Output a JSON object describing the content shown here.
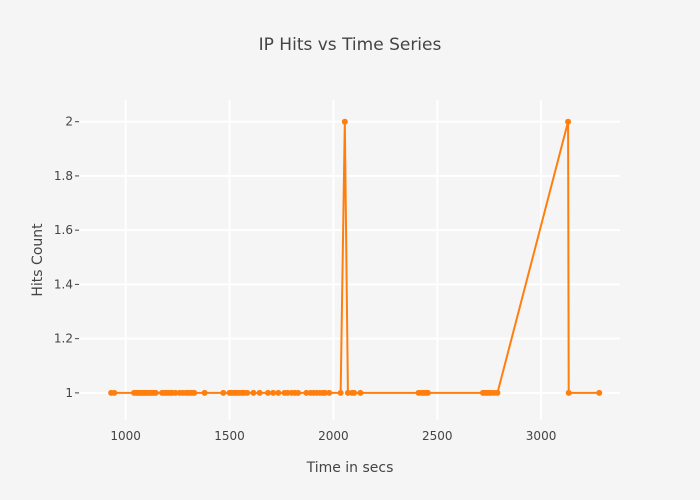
{
  "chart_data": {
    "type": "line",
    "title": "IP Hits vs Time Series",
    "xlabel": "Time in secs",
    "ylabel": "Hits Count",
    "xlim": [
      780,
      3380
    ],
    "ylim": [
      0.9,
      2.08
    ],
    "xticks": [
      1000,
      1500,
      2000,
      2500,
      3000
    ],
    "xtick_labels": [
      "1000",
      "1500",
      "2000",
      "2500",
      "3000"
    ],
    "yticks": [
      1,
      1.2,
      1.4,
      1.6,
      1.8,
      2
    ],
    "ytick_labels": [
      "1",
      "1.2",
      "1.4",
      "1.6",
      "1.8",
      "2"
    ],
    "grid": true,
    "legend": false,
    "colors": {
      "background": "#f5f5f5",
      "plot_background": "#f5f5f5",
      "grid": "#ffffff",
      "series": "#ff7f0e"
    },
    "series": [
      {
        "x": [
          930,
          945,
          1040,
          1050,
          1058,
          1065,
          1072,
          1080,
          1088,
          1095,
          1102,
          1110,
          1118,
          1125,
          1135,
          1145,
          1175,
          1185,
          1195,
          1205,
          1215,
          1225,
          1240,
          1260,
          1275,
          1290,
          1300,
          1310,
          1320,
          1330,
          1380,
          1470,
          1500,
          1510,
          1520,
          1530,
          1540,
          1550,
          1560,
          1570,
          1585,
          1615,
          1645,
          1685,
          1710,
          1735,
          1765,
          1780,
          1800,
          1815,
          1830,
          1870,
          1890,
          1905,
          1920,
          1935,
          1950,
          1960,
          1980,
          2035,
          2055,
          2070,
          2090,
          2100,
          2130,
          2410,
          2425,
          2435,
          2445,
          2455,
          2720,
          2730,
          2740,
          2750,
          2760,
          2775,
          2790,
          3130,
          3133,
          3280
        ],
        "y": [
          1,
          1,
          1,
          1,
          1,
          1,
          1,
          1,
          1,
          1,
          1,
          1,
          1,
          1,
          1,
          1,
          1,
          1,
          1,
          1,
          1,
          1,
          1,
          1,
          1,
          1,
          1,
          1,
          1,
          1,
          1,
          1,
          1,
          1,
          1,
          1,
          1,
          1,
          1,
          1,
          1,
          1,
          1,
          1,
          1,
          1,
          1,
          1,
          1,
          1,
          1,
          1,
          1,
          1,
          1,
          1,
          1,
          1,
          1,
          1,
          2,
          1,
          1,
          1,
          1,
          1,
          1,
          1,
          1,
          1,
          1,
          1,
          1,
          1,
          1,
          1,
          1,
          2,
          1,
          1
        ]
      }
    ]
  }
}
